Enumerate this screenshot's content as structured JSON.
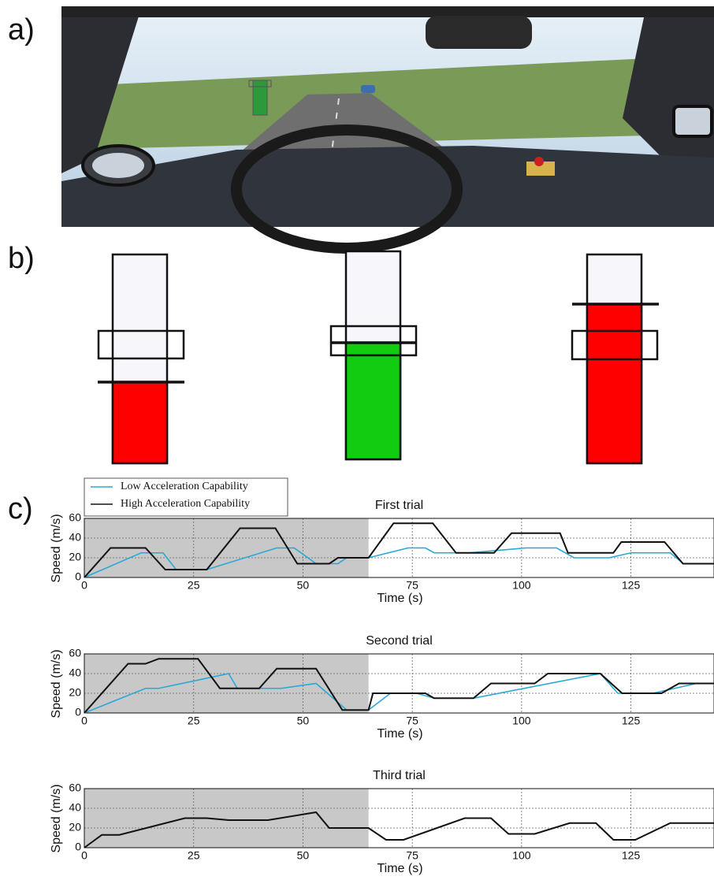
{
  "panel_labels": [
    "a)",
    "b)",
    "c)"
  ],
  "chart_data": [
    {
      "type": "line",
      "title": "First trial",
      "xlabel": "Time (s)",
      "ylabel": "Speed (m/s)",
      "xlim": [
        0,
        144
      ],
      "ylim": [
        0,
        60
      ],
      "xticks": [
        0,
        25,
        50,
        75,
        100,
        125
      ],
      "yticks": [
        0,
        20,
        40,
        60
      ],
      "grid": true,
      "shaded_xlim": [
        0,
        65
      ],
      "shade_color": "#c8c8c8",
      "legend": "top-left",
      "series": [
        {
          "name": "Low Acceleration Capability",
          "color": "#29a8d6",
          "x": [
            0,
            13,
            18,
            21,
            28,
            44,
            48,
            53,
            58,
            60,
            65,
            74,
            78,
            80,
            88,
            101,
            108,
            112,
            120,
            125,
            134,
            137,
            144
          ],
          "values": [
            0,
            25,
            25,
            8,
            8,
            30,
            30,
            14,
            14,
            20,
            20,
            30,
            30,
            25,
            25,
            30,
            30,
            20,
            20,
            25,
            25,
            14,
            14
          ]
        },
        {
          "name": "High Acceleration Capability",
          "color": "#111111",
          "x": [
            0,
            6,
            14,
            18.5,
            28,
            35.6,
            43.7,
            48.7,
            56,
            58,
            65,
            70.7,
            79.7,
            85,
            93.7,
            97.7,
            108.8,
            110.6,
            121,
            122.8,
            132.7,
            136.9,
            144
          ],
          "values": [
            0,
            30,
            30,
            8,
            8,
            50,
            50,
            14,
            14,
            20,
            20,
            55,
            55,
            25,
            25,
            45,
            45,
            25,
            25,
            36,
            36,
            14,
            14
          ]
        }
      ]
    },
    {
      "type": "line",
      "title": "Second trial",
      "xlabel": "Time (s)",
      "ylabel": "Speed (m/s)",
      "xlim": [
        0,
        144
      ],
      "ylim": [
        0,
        60
      ],
      "xticks": [
        0,
        25,
        50,
        75,
        100,
        125
      ],
      "yticks": [
        0,
        20,
        40,
        60
      ],
      "grid": true,
      "shaded_xlim": [
        0,
        65
      ],
      "shade_color": "#c8c8c8",
      "series": [
        {
          "color": "#29a8d6",
          "x": [
            0,
            14,
            17,
            33,
            35,
            45,
            53,
            60,
            65,
            70,
            76,
            80,
            89,
            118,
            122,
            130,
            140,
            144
          ],
          "values": [
            0,
            25,
            25,
            40,
            25,
            25,
            30,
            3,
            3,
            20,
            20,
            15,
            15,
            40,
            20,
            20,
            30,
            30
          ]
        },
        {
          "color": "#111111",
          "x": [
            0,
            10,
            14,
            17,
            26,
            31,
            40,
            44,
            53,
            59,
            65,
            66,
            78,
            80,
            89,
            93,
            103,
            106,
            118,
            123,
            132,
            136,
            144
          ],
          "values": [
            0,
            50,
            50,
            55,
            55,
            25,
            25,
            45,
            45,
            3,
            3,
            20,
            20,
            15,
            15,
            30,
            30,
            40,
            40,
            20,
            20,
            30,
            30
          ]
        }
      ]
    },
    {
      "type": "line",
      "title": "Third trial",
      "xlabel": "Time (s)",
      "ylabel": "Speed (m/s)",
      "xlim": [
        0,
        144
      ],
      "ylim": [
        0,
        60
      ],
      "xticks": [
        0,
        25,
        50,
        75,
        100,
        125
      ],
      "yticks": [
        0,
        20,
        40,
        60
      ],
      "grid": true,
      "shaded_xlim": [
        0,
        65
      ],
      "shade_color": "#c8c8c8",
      "series": [
        {
          "color": "#111111",
          "x": [
            0,
            4,
            8,
            23,
            28,
            33,
            42,
            53,
            56,
            65,
            69,
            73,
            87,
            93,
            97,
            103,
            111,
            117,
            121,
            126,
            134,
            144
          ],
          "values": [
            0,
            13,
            13,
            30,
            30,
            28,
            28,
            36,
            20,
            20,
            8,
            8,
            30,
            30,
            14,
            14,
            25,
            25,
            8,
            8,
            25,
            25
          ]
        }
      ]
    }
  ]
}
